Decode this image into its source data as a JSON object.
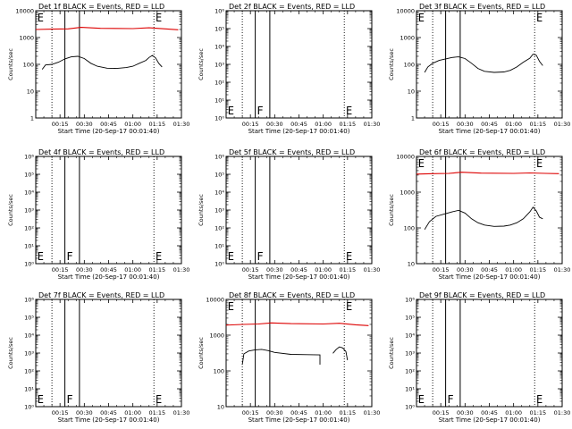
{
  "ylabel": "Counts/sec",
  "xlabel": "Start Time (20-Sep-17 00:01:40)",
  "time_ticks": [
    "00:15",
    "00:30",
    "00:45",
    "01:00",
    "01:15",
    "01:30"
  ],
  "colors": {
    "events": "#000000",
    "lld": "#dd0000",
    "axes": "#000000"
  },
  "chart_data": [
    {
      "title": "Det 1f BLACK = Events, RED = LLD",
      "type": "line",
      "y_scale": "log",
      "ylim": [
        1,
        10000
      ],
      "y_ticks": [
        "1",
        "10",
        "100",
        "1000",
        "10000"
      ],
      "x_range_min": [
        0,
        90
      ],
      "dotted_lines_min": [
        10,
        73
      ],
      "solid_lines_min": [
        18,
        27
      ],
      "markers": [
        {
          "label": "E",
          "x_min": 1
        },
        {
          "label": "E",
          "x_min": 74
        }
      ],
      "series": [
        {
          "color": "#dd0000",
          "points": [
            [
              0,
              2000
            ],
            [
              10,
              2050
            ],
            [
              20,
              2100
            ],
            [
              28,
              2400
            ],
            [
              40,
              2200
            ],
            [
              60,
              2150
            ],
            [
              70,
              2300
            ],
            [
              80,
              2100
            ],
            [
              88,
              1950
            ]
          ]
        },
        {
          "color": "#000000",
          "points": [
            [
              4,
              65
            ],
            [
              6,
              95
            ],
            [
              10,
              100
            ],
            [
              14,
              120
            ],
            [
              18,
              160
            ],
            [
              22,
              190
            ],
            [
              26,
              200
            ],
            [
              30,
              165
            ],
            [
              34,
              110
            ],
            [
              38,
              85
            ],
            [
              44,
              72
            ],
            [
              50,
              70
            ],
            [
              56,
              76
            ],
            [
              60,
              85
            ],
            [
              64,
              110
            ],
            [
              68,
              140
            ],
            [
              70,
              180
            ],
            [
              72,
              215
            ],
            [
              74,
              175
            ],
            [
              76,
              110
            ],
            [
              78,
              80
            ]
          ]
        }
      ]
    },
    {
      "title": "Det 2f BLACK = Events, RED = LLD",
      "type": "line",
      "y_scale": "log",
      "ylim": [
        1,
        1000000
      ],
      "y_ticks": [
        "10⁰",
        "10¹",
        "10²",
        "10³",
        "10⁴",
        "10⁵",
        "10⁶"
      ],
      "x_range_min": [
        0,
        90
      ],
      "dotted_lines_min": [
        10,
        73
      ],
      "solid_lines_min": [
        18,
        27
      ],
      "markers": [
        {
          "label": "E",
          "x_min": 1
        },
        {
          "label": "F",
          "x_min": 19
        },
        {
          "label": "E",
          "x_min": 74
        }
      ],
      "series": []
    },
    {
      "title": "Det 3f BLACK = Events, RED = LLD",
      "type": "line",
      "y_scale": "log",
      "ylim": [
        1,
        10000
      ],
      "y_ticks": [
        "1",
        "10",
        "100",
        "1000",
        "10000"
      ],
      "x_range_min": [
        0,
        90
      ],
      "dotted_lines_min": [
        10,
        73
      ],
      "solid_lines_min": [
        18,
        27
      ],
      "markers": [
        {
          "label": "E",
          "x_min": 1
        },
        {
          "label": "E",
          "x_min": 74
        }
      ],
      "series": [
        {
          "color": "#000000",
          "points": [
            [
              5,
              50
            ],
            [
              7,
              80
            ],
            [
              10,
              110
            ],
            [
              14,
              140
            ],
            [
              18,
              160
            ],
            [
              22,
              180
            ],
            [
              26,
              190
            ],
            [
              30,
              165
            ],
            [
              34,
              110
            ],
            [
              38,
              70
            ],
            [
              42,
              55
            ],
            [
              48,
              50
            ],
            [
              54,
              52
            ],
            [
              58,
              60
            ],
            [
              62,
              80
            ],
            [
              66,
              120
            ],
            [
              70,
              170
            ],
            [
              72,
              240
            ],
            [
              74,
              220
            ],
            [
              76,
              130
            ],
            [
              78,
              90
            ]
          ]
        }
      ]
    },
    {
      "title": "Det 4f BLACK = Events, RED = LLD",
      "type": "line",
      "y_scale": "log",
      "ylim": [
        1,
        1000000
      ],
      "y_ticks": [
        "10⁰",
        "10¹",
        "10²",
        "10³",
        "10⁴",
        "10⁵",
        "10⁶"
      ],
      "x_range_min": [
        0,
        90
      ],
      "dotted_lines_min": [
        10,
        73
      ],
      "solid_lines_min": [
        18,
        27
      ],
      "markers": [
        {
          "label": "E",
          "x_min": 1
        },
        {
          "label": "F",
          "x_min": 19
        },
        {
          "label": "E",
          "x_min": 74
        }
      ],
      "series": []
    },
    {
      "title": "Det 5f BLACK = Events, RED = LLD",
      "type": "line",
      "y_scale": "log",
      "ylim": [
        1,
        1000000
      ],
      "y_ticks": [
        "10⁰",
        "10¹",
        "10²",
        "10³",
        "10⁴",
        "10⁵",
        "10⁶"
      ],
      "x_range_min": [
        0,
        90
      ],
      "dotted_lines_min": [
        10,
        73
      ],
      "solid_lines_min": [
        18,
        27
      ],
      "markers": [
        {
          "label": "E",
          "x_min": 1
        },
        {
          "label": "F",
          "x_min": 19
        },
        {
          "label": "E",
          "x_min": 74
        }
      ],
      "series": []
    },
    {
      "title": "Det 6f BLACK = Events, RED = LLD",
      "type": "line",
      "y_scale": "log",
      "ylim": [
        10,
        10000
      ],
      "y_ticks": [
        "10",
        "100",
        "1000",
        "10000"
      ],
      "x_range_min": [
        0,
        90
      ],
      "dotted_lines_min": [
        10,
        73
      ],
      "solid_lines_min": [
        18,
        27
      ],
      "markers": [
        {
          "label": "E",
          "x_min": 1
        },
        {
          "label": "E",
          "x_min": 74
        }
      ],
      "series": [
        {
          "color": "#dd0000",
          "points": [
            [
              0,
              3200
            ],
            [
              10,
              3300
            ],
            [
              20,
              3350
            ],
            [
              28,
              3600
            ],
            [
              40,
              3400
            ],
            [
              60,
              3350
            ],
            [
              70,
              3450
            ],
            [
              80,
              3350
            ],
            [
              88,
              3300
            ]
          ]
        },
        {
          "color": "#000000",
          "points": [
            [
              5,
              90
            ],
            [
              8,
              150
            ],
            [
              12,
              210
            ],
            [
              18,
              250
            ],
            [
              22,
              280
            ],
            [
              26,
              310
            ],
            [
              30,
              260
            ],
            [
              34,
              180
            ],
            [
              38,
              140
            ],
            [
              42,
              120
            ],
            [
              48,
              110
            ],
            [
              54,
              112
            ],
            [
              58,
              120
            ],
            [
              62,
              140
            ],
            [
              66,
              180
            ],
            [
              70,
              280
            ],
            [
              72,
              380
            ],
            [
              74,
              300
            ],
            [
              76,
              200
            ],
            [
              78,
              180
            ]
          ]
        }
      ]
    },
    {
      "title": "Det 7f BLACK = Events, RED = LLD",
      "type": "line",
      "y_scale": "log",
      "ylim": [
        1,
        1000000
      ],
      "y_ticks": [
        "10⁰",
        "10¹",
        "10²",
        "10³",
        "10⁴",
        "10⁵",
        "10⁶"
      ],
      "x_range_min": [
        0,
        90
      ],
      "dotted_lines_min": [
        10,
        73
      ],
      "solid_lines_min": [
        18,
        27
      ],
      "markers": [
        {
          "label": "E",
          "x_min": 1
        },
        {
          "label": "F",
          "x_min": 19
        },
        {
          "label": "E",
          "x_min": 74
        }
      ],
      "series": []
    },
    {
      "title": "Det 8f BLACK = Events, RED = LLD",
      "type": "line",
      "y_scale": "log",
      "ylim": [
        10,
        10000
      ],
      "y_ticks": [
        "10",
        "100",
        "1000",
        "10000"
      ],
      "x_range_min": [
        0,
        90
      ],
      "dotted_lines_min": [
        10,
        73
      ],
      "solid_lines_min": [
        18,
        27
      ],
      "markers": [
        {
          "label": "E",
          "x_min": 1
        },
        {
          "label": "E",
          "x_min": 74
        }
      ],
      "series": [
        {
          "color": "#dd0000",
          "points": [
            [
              0,
              1900
            ],
            [
              10,
              2000
            ],
            [
              20,
              2050
            ],
            [
              28,
              2200
            ],
            [
              40,
              2100
            ],
            [
              60,
              2050
            ],
            [
              70,
              2150
            ],
            [
              80,
              1950
            ],
            [
              88,
              1850
            ]
          ]
        },
        {
          "color": "#000000",
          "points": [
            [
              10,
              150
            ],
            [
              11,
              300
            ],
            [
              14,
              360
            ],
            [
              18,
              390
            ],
            [
              22,
              400
            ],
            [
              26,
              370
            ],
            [
              30,
              330
            ],
            [
              40,
              290
            ],
            [
              50,
              285
            ],
            [
              58,
              280
            ],
            [
              58,
              150
            ]
          ]
        },
        {
          "color": "#000000",
          "points": [
            [
              66,
              310
            ],
            [
              68,
              400
            ],
            [
              70,
              470
            ],
            [
              72,
              440
            ],
            [
              74,
              350
            ],
            [
              75,
              200
            ]
          ]
        }
      ]
    },
    {
      "title": "Det 9f BLACK = Events, RED = LLD",
      "type": "line",
      "y_scale": "log",
      "ylim": [
        1,
        1000000
      ],
      "y_ticks": [
        "10⁰",
        "10¹",
        "10²",
        "10³",
        "10⁴",
        "10⁵",
        "10⁶"
      ],
      "x_range_min": [
        0,
        90
      ],
      "dotted_lines_min": [
        10,
        73
      ],
      "solid_lines_min": [
        18,
        27
      ],
      "markers": [
        {
          "label": "E",
          "x_min": 1
        },
        {
          "label": "F",
          "x_min": 19
        },
        {
          "label": "E",
          "x_min": 74
        }
      ],
      "series": []
    }
  ]
}
